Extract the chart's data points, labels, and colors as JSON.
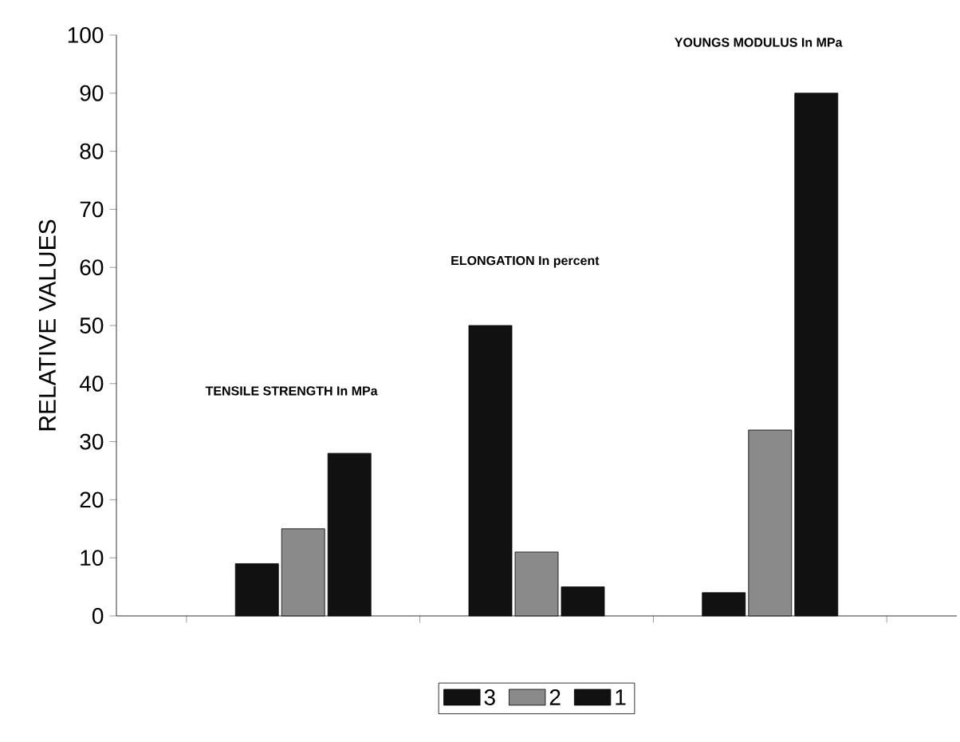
{
  "chart_data": {
    "type": "bar",
    "ylabel": "RELATIVE VALUES",
    "categories": [
      "TENSILE STRENGTH In MPa",
      "ELONGATION In percent",
      "YOUNGS MODULUS In MPa"
    ],
    "series": [
      {
        "name": "3",
        "color": "#111111",
        "values": [
          9,
          50,
          4
        ]
      },
      {
        "name": "2",
        "color": "#8a8a8a",
        "values": [
          15,
          11,
          32
        ]
      },
      {
        "name": "1",
        "color": "#111111",
        "values": [
          28,
          5,
          90
        ]
      }
    ],
    "ylim": [
      0,
      100
    ],
    "yticks": [
      0,
      10,
      20,
      30,
      40,
      50,
      60,
      70,
      80,
      90,
      100
    ],
    "grid": false,
    "legend": "bottom"
  }
}
